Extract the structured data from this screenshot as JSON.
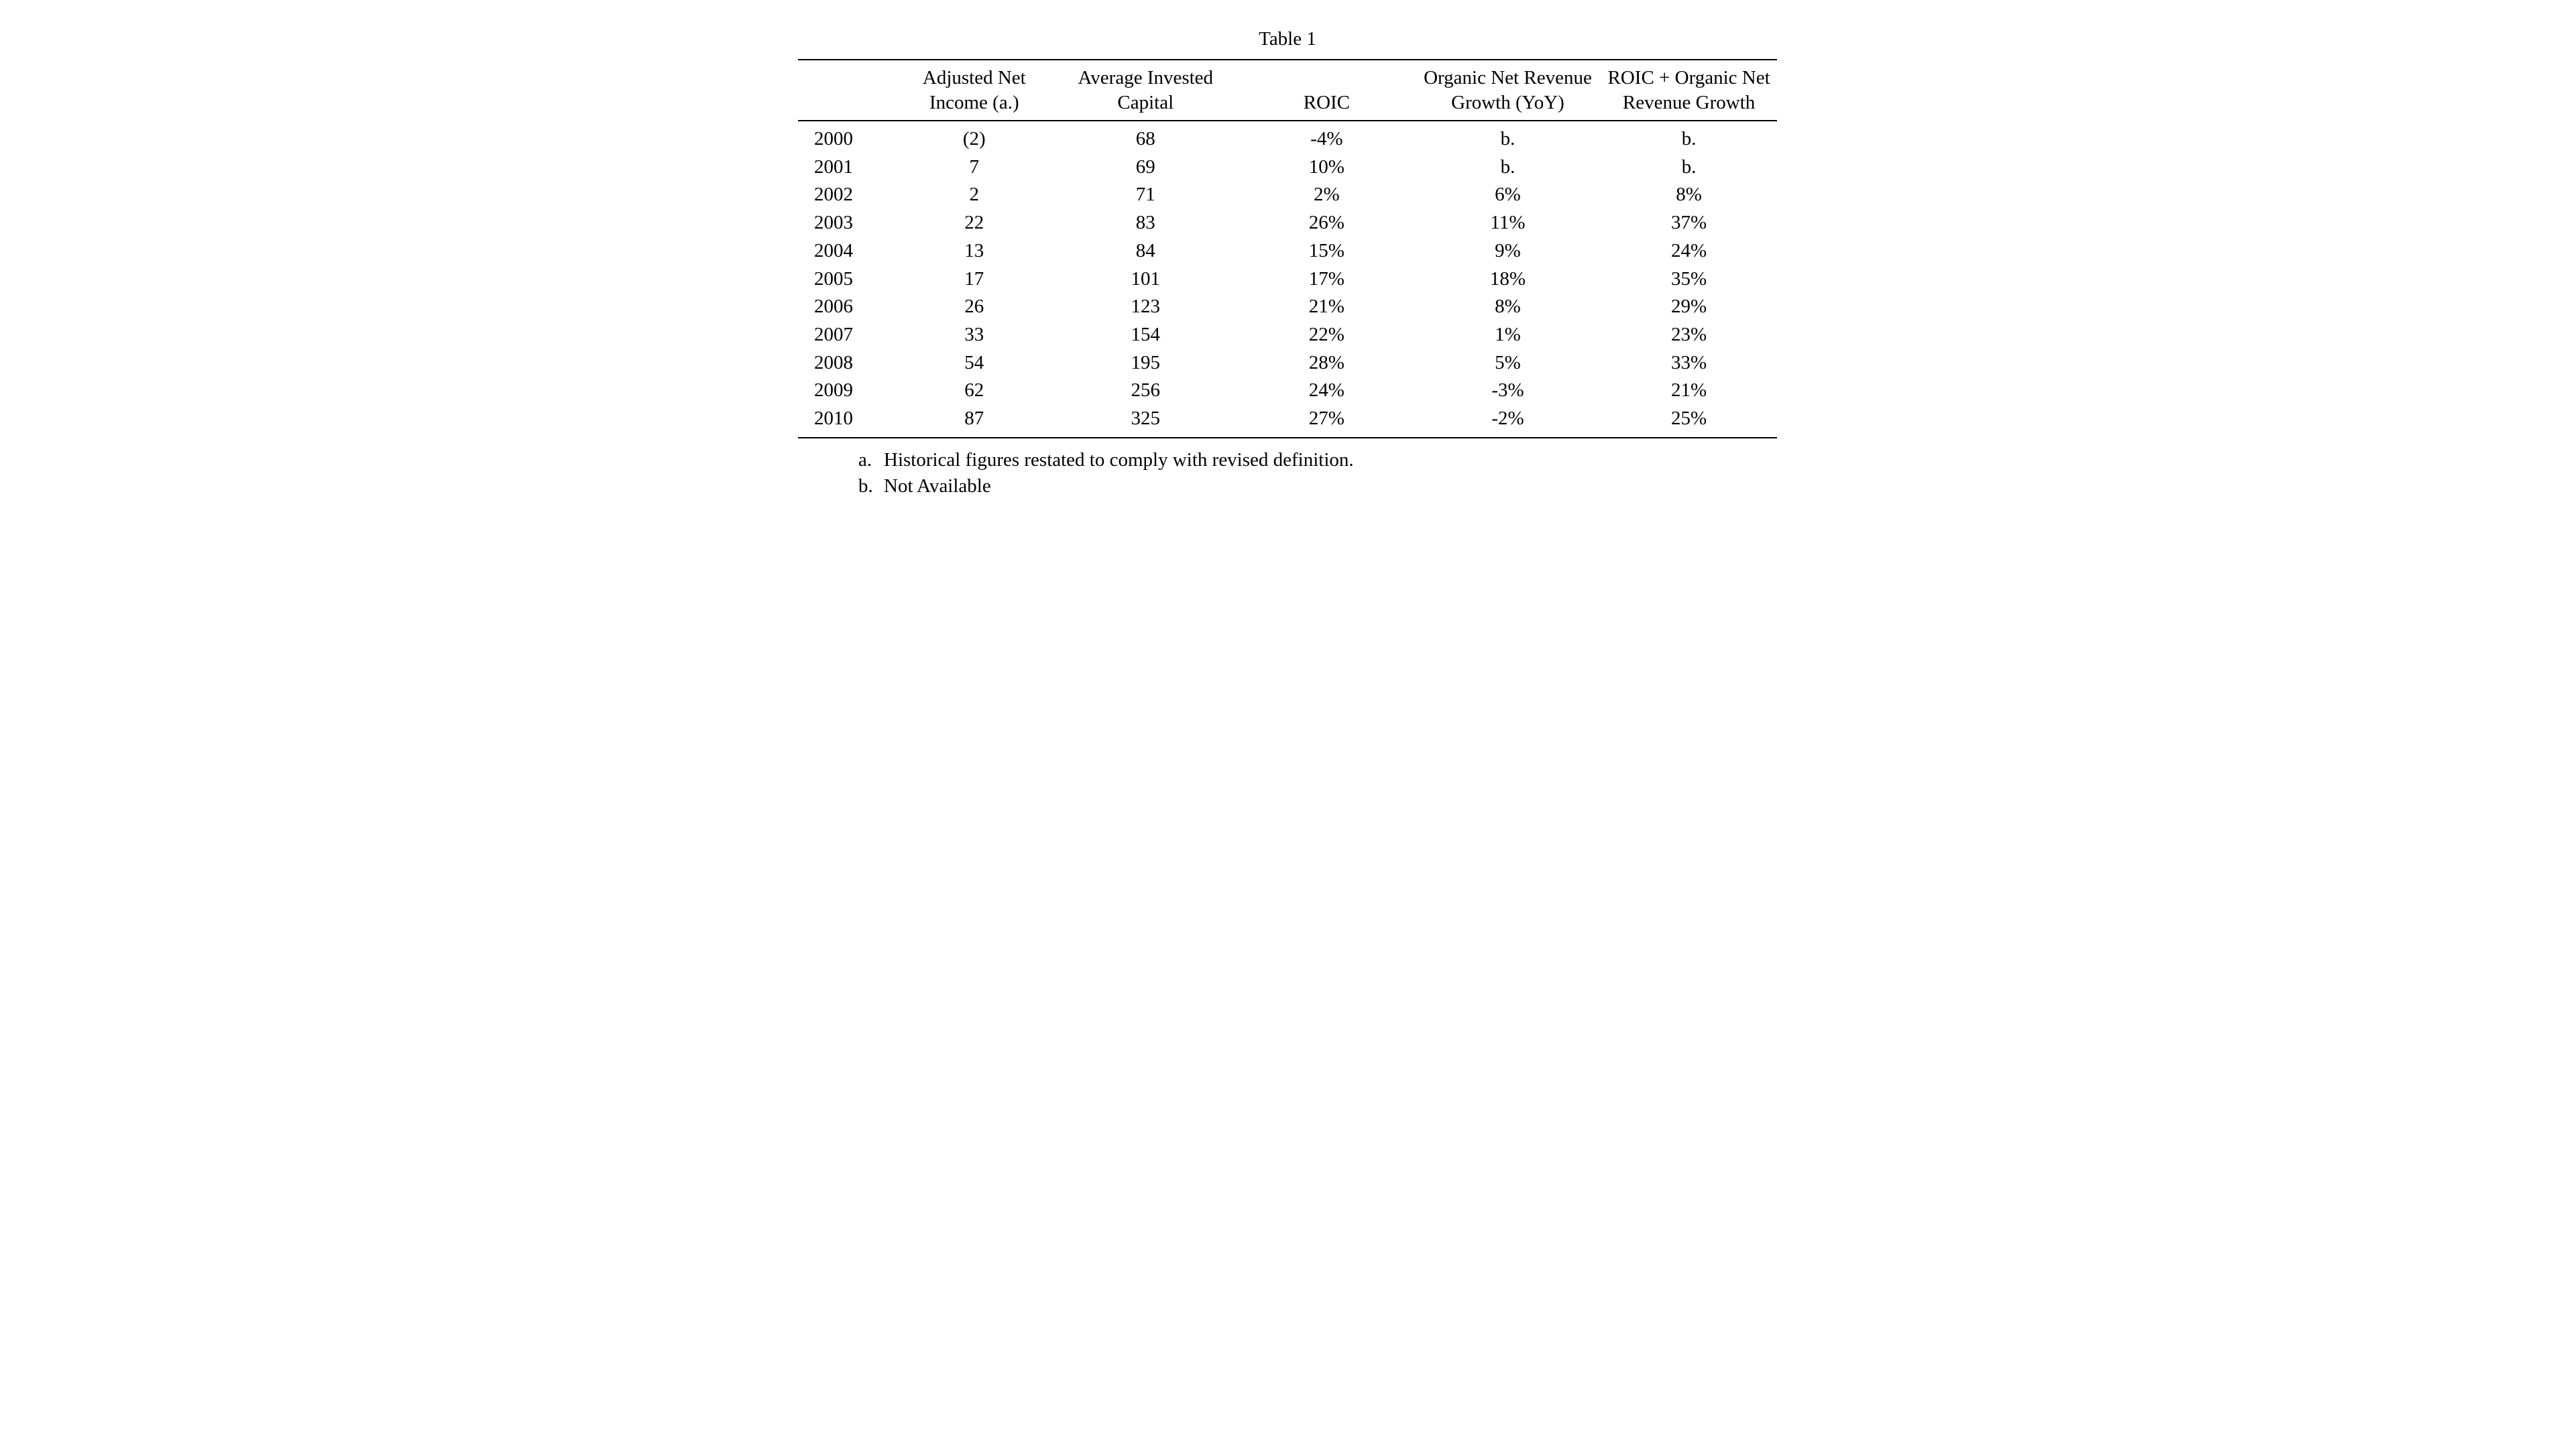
{
  "table": {
    "type": "table",
    "caption": "Table 1",
    "background_color": "#ffffff",
    "text_color": "#000000",
    "rule_color": "#000000",
    "font_family": "Times New Roman",
    "font_size_pt": 22,
    "columns": [
      {
        "key": "year",
        "header": "",
        "width_pct": 10,
        "align": "left"
      },
      {
        "key": "adj_net_income",
        "header": "Adjusted Net Income (a.)",
        "width_pct": 16,
        "align": "center"
      },
      {
        "key": "avg_invested_capital",
        "header": "Average Invested Capital",
        "width_pct": 19,
        "align": "center"
      },
      {
        "key": "roic",
        "header": "ROIC",
        "width_pct": 18,
        "align": "center"
      },
      {
        "key": "organic_growth",
        "header": "Organic Net Revenue Growth (YoY)",
        "width_pct": 19,
        "align": "center"
      },
      {
        "key": "roic_plus_growth",
        "header": "ROIC + Organic Net Revenue Growth",
        "width_pct": 18,
        "align": "center"
      }
    ],
    "rows": [
      [
        "2000",
        "(2)",
        "68",
        "-4%",
        "b.",
        "b."
      ],
      [
        "2001",
        "7",
        "69",
        "10%",
        "b.",
        "b."
      ],
      [
        "2002",
        "2",
        "71",
        "2%",
        "6%",
        "8%"
      ],
      [
        "2003",
        "22",
        "83",
        "26%",
        "11%",
        "37%"
      ],
      [
        "2004",
        "13",
        "84",
        "15%",
        "9%",
        "24%"
      ],
      [
        "2005",
        "17",
        "101",
        "17%",
        "18%",
        "35%"
      ],
      [
        "2006",
        "26",
        "123",
        "21%",
        "8%",
        "29%"
      ],
      [
        "2007",
        "33",
        "154",
        "22%",
        "1%",
        "23%"
      ],
      [
        "2008",
        "54",
        "195",
        "28%",
        "5%",
        "33%"
      ],
      [
        "2009",
        "62",
        "256",
        "24%",
        "-3%",
        "21%"
      ],
      [
        "2010",
        "87",
        "325",
        "27%",
        "-2%",
        "25%"
      ]
    ],
    "footnotes": [
      {
        "marker": "a.",
        "text": "Historical figures restated to comply with revised definition."
      },
      {
        "marker": "b.",
        "text": "Not Available"
      }
    ]
  }
}
